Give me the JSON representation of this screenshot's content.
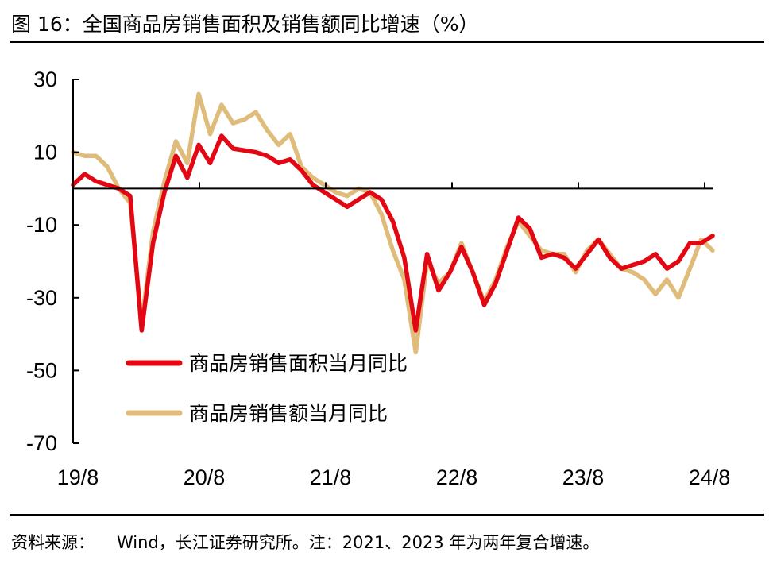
{
  "header": {
    "title": "图 16：全国商品房销售面积及销售额同比增速（%）"
  },
  "footer": {
    "source_label": "资料来源：",
    "source_text": "Wind，长江证券研究所。注：2021、2023 年为两年复合增速。"
  },
  "colors": {
    "area_series": "#e30613",
    "sales_series": "#e0bc7a",
    "axis": "#000000"
  },
  "chart_data": {
    "type": "line",
    "title": "图 16：全国商品房销售面积及销售额同比增速（%）",
    "xlabel": "",
    "ylabel": "",
    "ylim": [
      -70,
      30
    ],
    "yticks": [
      30,
      10,
      -10,
      -30,
      -50,
      -70
    ],
    "x_start": "19/8",
    "x_end": "24/8",
    "xtick_labels": [
      {
        "label": "19/8",
        "index": 0
      },
      {
        "label": "20/8",
        "index": 12
      },
      {
        "label": "21/8",
        "index": 24
      },
      {
        "label": "22/8",
        "index": 36
      },
      {
        "label": "23/8",
        "index": 48
      },
      {
        "label": "24/8",
        "index": 60
      }
    ],
    "legend_position": "bottom-left inside plot",
    "series": [
      {
        "name": "商品房销售面积当月同比",
        "color": "#e30613",
        "values": [
          1.0,
          4.0,
          2.0,
          1.0,
          0.0,
          -2.0,
          -39.0,
          -15.0,
          -1.0,
          9.0,
          3.0,
          12.0,
          7.0,
          14.5,
          11.0,
          10.5,
          10.0,
          9.0,
          7.0,
          8.0,
          5.0,
          1.0,
          -1.0,
          -3.0,
          -5.0,
          -3.0,
          -1.0,
          -3.0,
          -9.0,
          -19.0,
          -39.0,
          -18.0,
          -28.0,
          -23.0,
          -16.0,
          -23.0,
          -32.0,
          -26.0,
          -17.0,
          -8.0,
          -11.0,
          -19.0,
          -18.0,
          -19.0,
          -22.0,
          -18.0,
          -14.0,
          -19.0,
          -22.0,
          -21.0,
          -20.0,
          -18.0,
          -22.0,
          -20.0,
          -15.0,
          -15.0,
          -13.0
        ]
      },
      {
        "name": "商品房销售额当月同比",
        "color": "#e0bc7a",
        "values": [
          10.0,
          9.0,
          9.0,
          6.0,
          0.0,
          -4.0,
          -37.0,
          -12.0,
          2.0,
          13.0,
          7.0,
          26.0,
          15.0,
          23.0,
          18.0,
          19.0,
          21.0,
          16.0,
          12.0,
          15.0,
          6.0,
          3.0,
          1.0,
          -1.0,
          -2.0,
          0.0,
          -1.0,
          -7.0,
          -17.0,
          -25.0,
          -45.0,
          -20.0,
          -26.0,
          -23.0,
          -15.0,
          -23.0,
          -31.0,
          -25.0,
          -16.0,
          -9.0,
          -13.0,
          -17.0,
          -18.0,
          -18.0,
          -23.0,
          -17.0,
          -14.0,
          -18.0,
          -22.0,
          -23.0,
          -25.0,
          -29.0,
          -25.0,
          -30.0,
          -22.0,
          -14.0,
          -17.0
        ]
      }
    ]
  }
}
